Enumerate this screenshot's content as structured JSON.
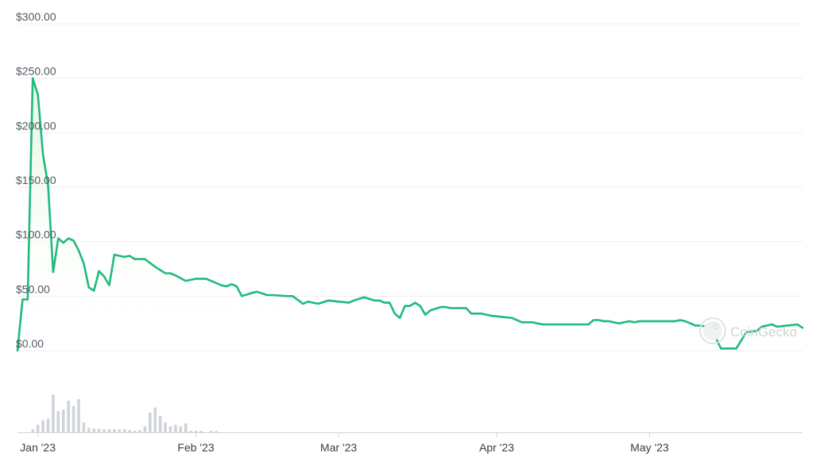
{
  "chart_data": {
    "type": "line",
    "colors": {
      "line": "#1fba7c",
      "area_top": "#e8f5e1",
      "volume": "#cfd3da",
      "grid": "#eeeeee",
      "axis": "#d0d4da"
    },
    "y_ticks": [
      "$300.00",
      "$250.00",
      "$200.00",
      "$150.00",
      "$100.00",
      "$50.00",
      "$0.00"
    ],
    "y_tick_values": [
      300,
      250,
      200,
      150,
      100,
      50,
      0
    ],
    "ylim": [
      0,
      300
    ],
    "x_ticks": [
      {
        "label": "Jan '23",
        "day": 1
      },
      {
        "label": "Feb '23",
        "day": 32
      },
      {
        "label": "Mar '23",
        "day": 60
      },
      {
        "label": "Apr '23",
        "day": 91
      },
      {
        "label": "May '23",
        "day": 121
      }
    ],
    "xlim": [
      -3,
      151
    ],
    "grid": true,
    "price_series": {
      "x": [
        -3,
        -2,
        -1,
        0,
        1,
        2,
        3,
        4,
        5,
        6,
        7,
        8,
        9,
        10,
        11,
        12,
        13,
        14,
        15,
        16,
        18,
        19,
        20,
        21,
        22,
        24,
        26,
        27,
        28,
        30,
        32,
        34,
        35,
        37,
        38,
        39,
        40,
        41,
        43,
        44,
        46,
        47,
        50,
        51,
        53,
        54,
        55,
        56,
        58,
        60,
        62,
        63,
        65,
        67,
        68,
        69,
        70,
        71,
        72,
        73,
        74,
        75,
        76,
        77,
        78,
        80,
        81,
        82,
        85,
        86,
        88,
        90,
        92,
        94,
        96,
        98,
        100,
        101,
        103,
        106,
        108,
        109,
        110,
        111,
        112,
        113,
        114,
        115,
        117,
        118,
        119,
        121,
        122,
        124,
        126,
        127,
        128,
        129,
        130,
        131,
        133,
        135,
        137,
        138,
        140,
        142,
        143,
        144,
        145,
        146,
        148,
        150,
        151
      ],
      "y": [
        0,
        47,
        47,
        250,
        235,
        180,
        152,
        72,
        103,
        99,
        103,
        101,
        92,
        80,
        58,
        55,
        73,
        68,
        60,
        88,
        86,
        87,
        84,
        84,
        84,
        77,
        71,
        71,
        69,
        64,
        66,
        66,
        64,
        60,
        59,
        61,
        59,
        50,
        53,
        54,
        51,
        51,
        50,
        50,
        43,
        45,
        44,
        43,
        46,
        45,
        44,
        46,
        49,
        46,
        46,
        44,
        44,
        34,
        30,
        41,
        41,
        44,
        41,
        33,
        37,
        40,
        40,
        39,
        39,
        34,
        34,
        32,
        31,
        30,
        26,
        26,
        24,
        24,
        24,
        24,
        24,
        24,
        28,
        28,
        27,
        27,
        26,
        25,
        27,
        26,
        27,
        27,
        27,
        27,
        27,
        28,
        27,
        25,
        23,
        23,
        21,
        2,
        2,
        2,
        17,
        18,
        22,
        23,
        24,
        22,
        23,
        24,
        21
      ]
    },
    "volume_series": {
      "x": [
        0,
        1,
        2,
        3,
        4,
        5,
        6,
        7,
        8,
        9,
        10,
        11,
        12,
        13,
        14,
        15,
        16,
        17,
        18,
        19,
        20,
        21,
        22,
        23,
        24,
        25,
        26,
        27,
        28,
        29,
        30,
        31,
        32,
        33,
        34,
        35,
        36
      ],
      "values": [
        4,
        10,
        16,
        18,
        50,
        28,
        30,
        42,
        35,
        44,
        13,
        6,
        5,
        5,
        4,
        4,
        4,
        4,
        4,
        3,
        2,
        3,
        8,
        26,
        33,
        22,
        13,
        8,
        10,
        8,
        12,
        2,
        2,
        2,
        0,
        2,
        2
      ],
      "ylim": [
        0,
        60
      ]
    },
    "watermark": "CoinGecko"
  }
}
